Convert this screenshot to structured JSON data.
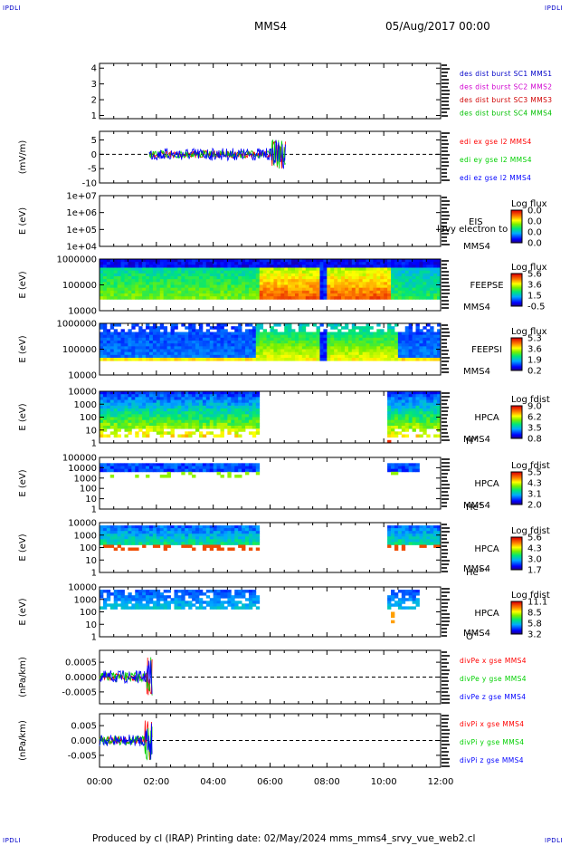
{
  "corners": {
    "tl": "IPDLI",
    "tr": "IPDLI",
    "bl": "IPDLI",
    "br": "IPDLI"
  },
  "header": {
    "spacecraft": "MMS4",
    "datetime": "05/Aug/2017 00:00"
  },
  "footer": "Produced by cl (IRAP)   Printing date: 02/May/2024   mms_mms4_srvy_vue_web2.cl",
  "colors": {
    "mms1": "#0000c8",
    "mms2": "#d000d0",
    "mms3": "#d00000",
    "mms4": "#00c000",
    "x": "#ff0000",
    "y": "#00d000",
    "z": "#0000ff"
  },
  "chart_data": [
    {
      "type": "line",
      "id": "dist",
      "yticks": [
        "1",
        "2",
        "3",
        "4"
      ],
      "ylim": [
        0.8,
        4.3
      ],
      "legend": [
        "des dist burst SC1 MMS1",
        "des dist burst SC2 MMS2",
        "des dist burst SC3 MMS3",
        "des dist burst SC4 MMS4"
      ]
    },
    {
      "type": "line",
      "id": "edi",
      "ylabel": "(mV/m)",
      "yticks": [
        "5",
        "0",
        "-5",
        "-10"
      ],
      "ylim": [
        -10,
        8
      ],
      "legend": [
        "edi ex gse l2 MMS4",
        "edi ey gse l2 MMS4",
        "edi ez gse l2 MMS4"
      ],
      "data_range_hours": [
        1.75,
        6.55
      ]
    },
    {
      "type": "heatmap",
      "id": "eis",
      "ylabel": "E (eV)",
      "yticks": [
        "1e+07",
        "1e+06",
        "1e+05",
        "1e+04"
      ],
      "labels": [
        "EIS",
        "MMS4"
      ],
      "overlap_text": "phxtof",
      "overlap_text2": "l3vy electron to",
      "cbar_title": "Log flux",
      "cbar_ticks": [
        "0.0",
        "0.0",
        "0.0",
        "0.0"
      ]
    },
    {
      "type": "heatmap",
      "id": "feepse",
      "ylabel": "E (eV)",
      "yticks": [
        "1000000",
        "100000",
        "10000"
      ],
      "labels": [
        "FEEPSE",
        "MMS4"
      ],
      "cbar_title": "Log flux",
      "cbar_ticks": [
        "5.6",
        "3.6",
        "1.5",
        "-0.5"
      ]
    },
    {
      "type": "heatmap",
      "id": "feepsi",
      "ylabel": "E (eV)",
      "yticks": [
        "1000000",
        "100000",
        "10000"
      ],
      "labels": [
        "FEEPSI",
        "MMS4"
      ],
      "cbar_title": "Log flux",
      "cbar_ticks": [
        "5.3",
        "3.6",
        "1.9",
        "0.2"
      ]
    },
    {
      "type": "heatmap",
      "id": "hpca_h",
      "ylabel": "E (eV)",
      "yticks": [
        "10000",
        "1000",
        "100",
        "10",
        "1"
      ],
      "labels": [
        "HPCA",
        "MMS4"
      ],
      "species": "H",
      "sup": "+",
      "cbar_title": "Log fdist",
      "cbar_ticks": [
        "9.0",
        "6.2",
        "3.5",
        "0.8"
      ]
    },
    {
      "type": "heatmap",
      "id": "hpca_he",
      "ylabel": "E (eV)",
      "yticks": [
        "100000",
        "10000",
        "1000",
        "100",
        "10",
        "1"
      ],
      "labels": [
        "HPCA",
        "MMS4"
      ],
      "species": "He",
      "sup": "+",
      "cbar_title": "Log fdist",
      "cbar_ticks": [
        "5.5",
        "4.3",
        "3.1",
        "2.0"
      ]
    },
    {
      "type": "heatmap",
      "id": "hpca_hepp",
      "ylabel": "E (eV)",
      "yticks": [
        "10000",
        "1000",
        "100",
        "10",
        "1"
      ],
      "labels": [
        "HPCA",
        "MMS4"
      ],
      "species": "He",
      "sup": "++",
      "cbar_title": "Log fdist",
      "cbar_ticks": [
        "5.6",
        "4.3",
        "3.0",
        "1.7"
      ]
    },
    {
      "type": "heatmap",
      "id": "hpca_o",
      "ylabel": "E (eV)",
      "yticks": [
        "10000",
        "1000",
        "100",
        "10",
        "1"
      ],
      "labels": [
        "HPCA",
        "MMS4"
      ],
      "species": "O",
      "sup": "+",
      "cbar_title": "Log fdist",
      "cbar_ticks": [
        "11.1",
        "8.5",
        "5.8",
        "3.2"
      ]
    },
    {
      "type": "line",
      "id": "divpe",
      "ylabel": "(nPa/km)",
      "yticks": [
        "0.0005",
        "0.0000",
        "-0.0005"
      ],
      "ylim": [
        -0.0009,
        0.0009
      ],
      "legend": [
        "divPe x gse MMS4",
        "divPe y gse MMS4",
        "divPe z gse MMS4"
      ],
      "data_range_hours": [
        0.0,
        1.85
      ]
    },
    {
      "type": "line",
      "id": "divpi",
      "ylabel": "(nPa/km)",
      "yticks": [
        "0.005",
        "0.000",
        "-0.005"
      ],
      "ylim": [
        -0.009,
        0.009
      ],
      "legend": [
        "divPi x gse MMS4",
        "divPi y gse MMS4",
        "divPi z gse MMS4"
      ],
      "data_range_hours": [
        0.0,
        1.85
      ]
    }
  ],
  "xaxis": {
    "ticks": [
      "00:00",
      "02:00",
      "04:00",
      "06:00",
      "08:00",
      "10:00",
      "12:00"
    ],
    "range_hours": [
      0,
      12
    ]
  }
}
